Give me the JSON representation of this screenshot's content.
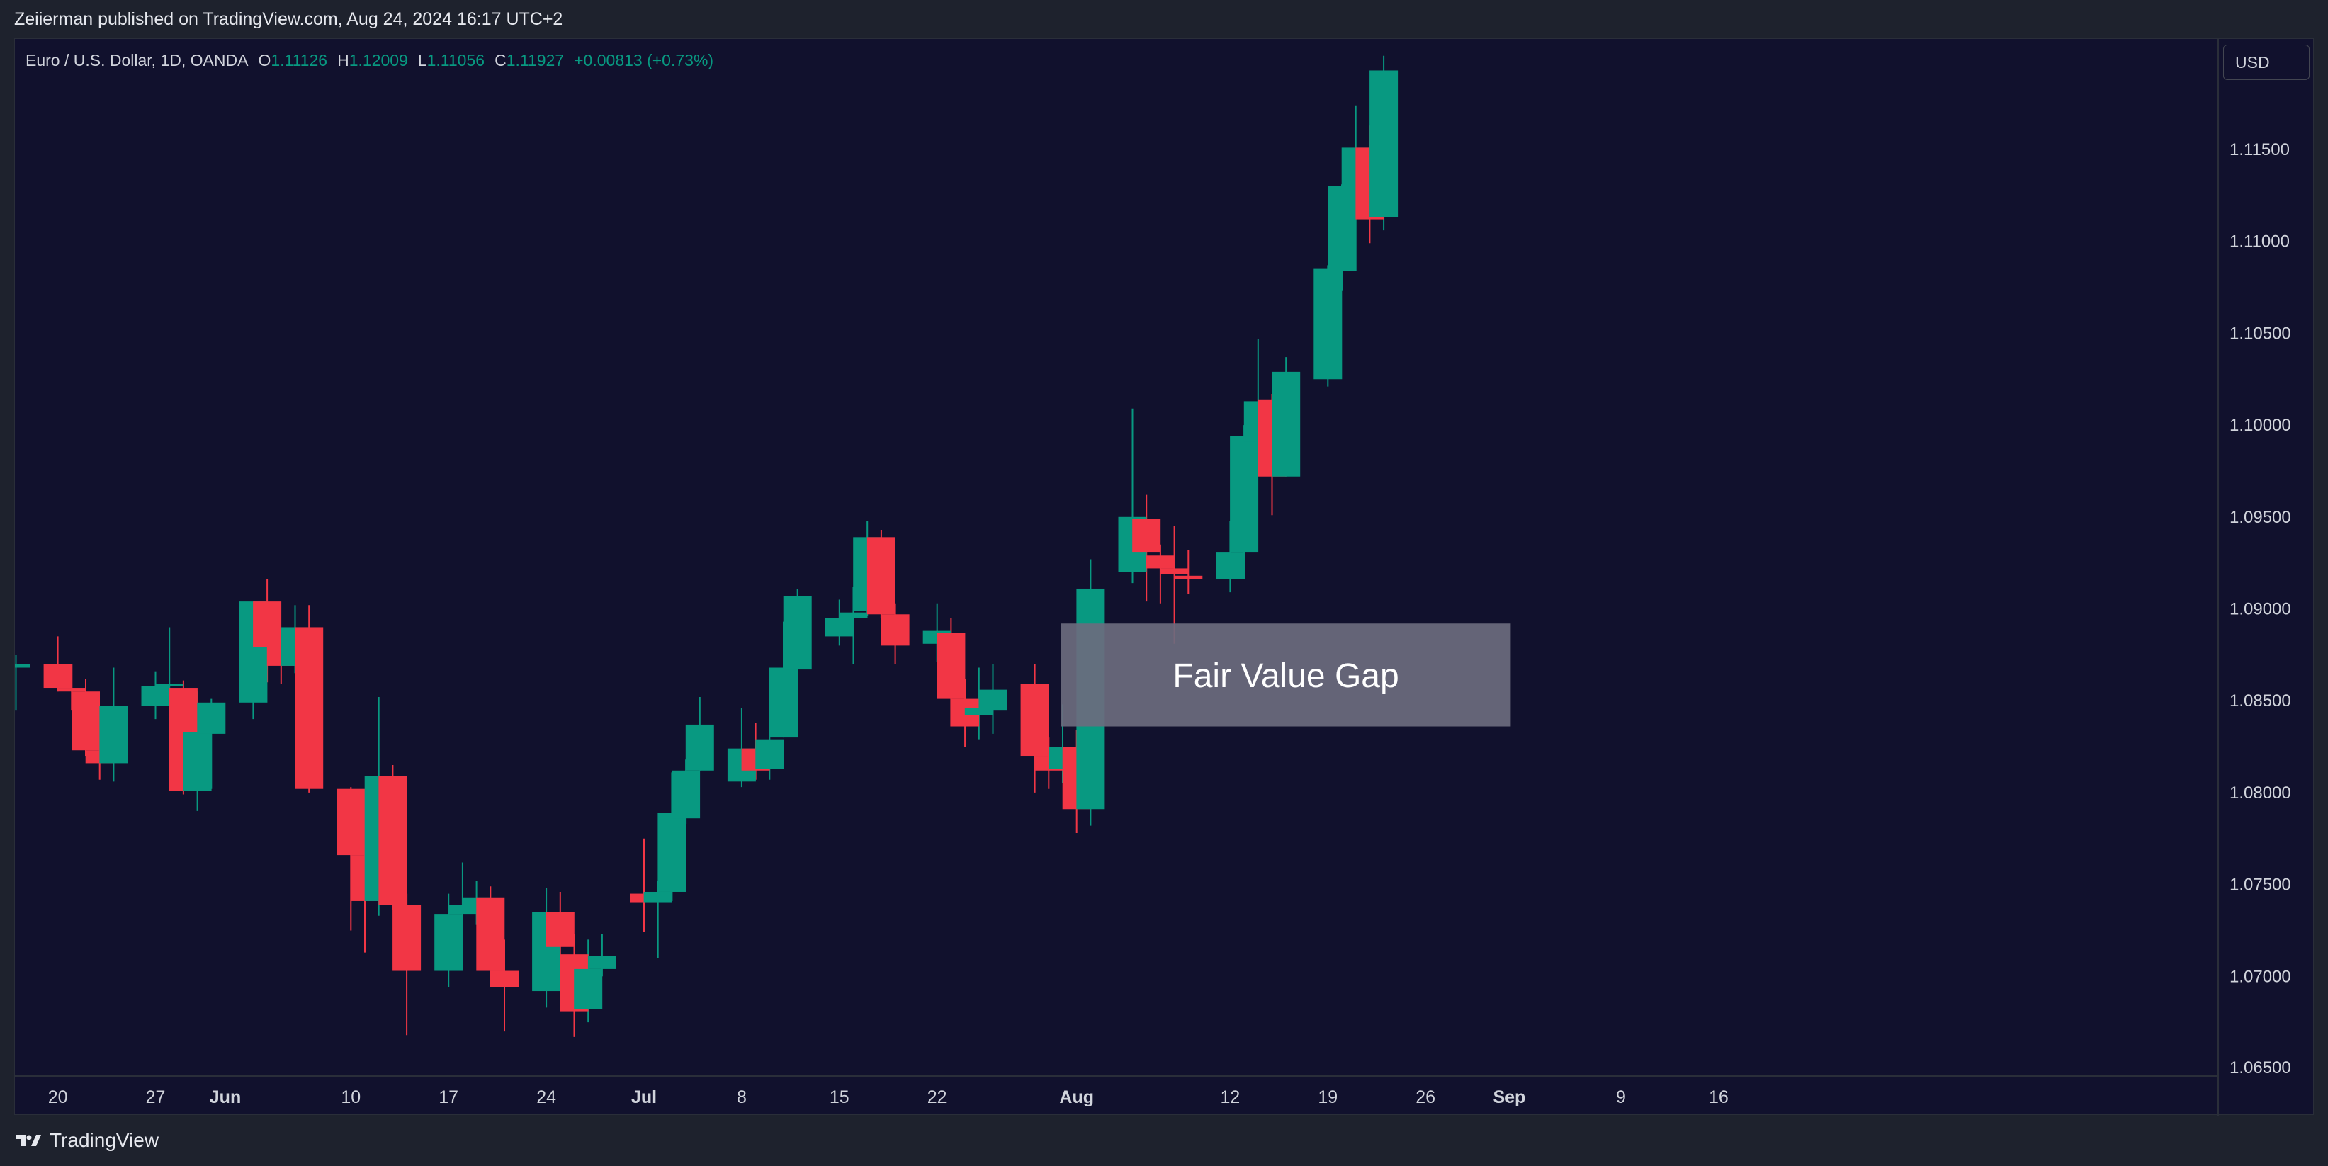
{
  "header": {
    "published_text": "Zeiierman published on TradingView.com, Aug 24, 2024 16:17 UTC+2"
  },
  "legend": {
    "symbol": "Euro / U.S. Dollar, 1D, OANDA",
    "o_label": "O",
    "o_value": "1.11126",
    "h_label": "H",
    "h_value": "1.12009",
    "l_label": "L",
    "l_value": "1.11056",
    "c_label": "C",
    "c_value": "1.11927",
    "change": "+0.00813 (+0.73%)"
  },
  "currency": "USD",
  "footer": {
    "brand": "TradingView"
  },
  "colors": {
    "up": "#089981",
    "down": "#f23645",
    "background": "#11112d",
    "fvg_box": "#6b6b7e"
  },
  "chart_data": {
    "type": "candlestick",
    "symbol": "EURUSD",
    "timeframe": "1D",
    "ylim": [
      1.0645,
      1.1205
    ],
    "y_ticks": [
      "1.11500",
      "1.11000",
      "1.10500",
      "1.10000",
      "1.09500",
      "1.09000",
      "1.08500",
      "1.08000",
      "1.07500",
      "1.07000",
      "1.06500"
    ],
    "x_ticks": [
      {
        "label": "20",
        "bold": false,
        "day": 0
      },
      {
        "label": "27",
        "bold": false,
        "day": 7
      },
      {
        "label": "Jun",
        "bold": true,
        "day": 12
      },
      {
        "label": "10",
        "bold": false,
        "day": 21
      },
      {
        "label": "17",
        "bold": false,
        "day": 28
      },
      {
        "label": "24",
        "bold": false,
        "day": 35
      },
      {
        "label": "Jul",
        "bold": true,
        "day": 42
      },
      {
        "label": "8",
        "bold": false,
        "day": 49
      },
      {
        "label": "15",
        "bold": false,
        "day": 56
      },
      {
        "label": "22",
        "bold": false,
        "day": 63
      },
      {
        "label": "Aug",
        "bold": true,
        "day": 73
      },
      {
        "label": "12",
        "bold": false,
        "day": 84
      },
      {
        "label": "19",
        "bold": false,
        "day": 91
      },
      {
        "label": "26",
        "bold": false,
        "day": 98
      },
      {
        "label": "Sep",
        "bold": true,
        "day": 104
      },
      {
        "label": "9",
        "bold": false,
        "day": 112
      },
      {
        "label": "16",
        "bold": false,
        "day": 119
      }
    ],
    "candles": [
      {
        "d": "May 17",
        "o": 1.0868,
        "h": 1.0875,
        "l": 1.0845,
        "c": 1.087
      },
      {
        "d": "May 20",
        "o": 1.087,
        "h": 1.0885,
        "l": 1.0855,
        "c": 1.0857
      },
      {
        "d": "May 21",
        "o": 1.0857,
        "h": 1.087,
        "l": 1.0845,
        "c": 1.0855
      },
      {
        "d": "May 22",
        "o": 1.0855,
        "h": 1.0862,
        "l": 1.082,
        "c": 1.0823
      },
      {
        "d": "May 23",
        "o": 1.0823,
        "h": 1.0843,
        "l": 1.0807,
        "c": 1.0816
      },
      {
        "d": "May 24",
        "o": 1.0816,
        "h": 1.0868,
        "l": 1.0806,
        "c": 1.0847
      },
      {
        "d": "May 27",
        "o": 1.0847,
        "h": 1.0866,
        "l": 1.084,
        "c": 1.0858
      },
      {
        "d": "May 28",
        "o": 1.0858,
        "h": 1.089,
        "l": 1.0855,
        "c": 1.0859
      },
      {
        "d": "May 29",
        "o": 1.0857,
        "h": 1.0861,
        "l": 1.0799,
        "c": 1.0801
      },
      {
        "d": "May 30",
        "o": 1.0801,
        "h": 1.0855,
        "l": 1.079,
        "c": 1.0833
      },
      {
        "d": "May 31",
        "o": 1.0832,
        "h": 1.0851,
        "l": 1.0802,
        "c": 1.0849
      },
      {
        "d": "Jun 3",
        "o": 1.0849,
        "h": 1.0902,
        "l": 1.084,
        "c": 1.0904
      },
      {
        "d": "Jun 4",
        "o": 1.0904,
        "h": 1.0916,
        "l": 1.086,
        "c": 1.0879
      },
      {
        "d": "Jun 5",
        "o": 1.0879,
        "h": 1.0889,
        "l": 1.0859,
        "c": 1.0869
      },
      {
        "d": "Jun 6",
        "o": 1.0869,
        "h": 1.0902,
        "l": 1.0865,
        "c": 1.089
      },
      {
        "d": "Jun 7",
        "o": 1.089,
        "h": 1.0902,
        "l": 1.08,
        "c": 1.0802
      },
      {
        "d": "Jun 10",
        "o": 1.0802,
        "h": 1.0803,
        "l": 1.0725,
        "c": 1.0766
      },
      {
        "d": "Jun 11",
        "o": 1.0766,
        "h": 1.0782,
        "l": 1.0713,
        "c": 1.0741
      },
      {
        "d": "Jun 12",
        "o": 1.0741,
        "h": 1.0852,
        "l": 1.0733,
        "c": 1.0809
      },
      {
        "d": "Jun 13",
        "o": 1.0809,
        "h": 1.0815,
        "l": 1.0736,
        "c": 1.0739
      },
      {
        "d": "Jun 14",
        "o": 1.0739,
        "h": 1.0745,
        "l": 1.0668,
        "c": 1.0703
      },
      {
        "d": "Jun 17",
        "o": 1.0703,
        "h": 1.0745,
        "l": 1.0694,
        "c": 1.0734
      },
      {
        "d": "Jun 18",
        "o": 1.0734,
        "h": 1.0762,
        "l": 1.0708,
        "c": 1.0739
      },
      {
        "d": "Jun 19",
        "o": 1.0739,
        "h": 1.0752,
        "l": 1.0728,
        "c": 1.0743
      },
      {
        "d": "Jun 20",
        "o": 1.0743,
        "h": 1.0749,
        "l": 1.0703,
        "c": 1.0703
      },
      {
        "d": "Jun 21",
        "o": 1.0703,
        "h": 1.072,
        "l": 1.067,
        "c": 1.0694
      },
      {
        "d": "Jun 24",
        "o": 1.0692,
        "h": 1.0748,
        "l": 1.0683,
        "c": 1.0735
      },
      {
        "d": "Jun 25",
        "o": 1.0735,
        "h": 1.0746,
        "l": 1.0701,
        "c": 1.0716
      },
      {
        "d": "Jun 26",
        "o": 1.0712,
        "h": 1.0723,
        "l": 1.0667,
        "c": 1.0681
      },
      {
        "d": "Jun 27",
        "o": 1.0682,
        "h": 1.072,
        "l": 1.0675,
        "c": 1.0704
      },
      {
        "d": "Jun 28",
        "o": 1.0704,
        "h": 1.0723,
        "l": 1.07,
        "c": 1.0711
      },
      {
        "d": "Jul 1",
        "o": 1.0745,
        "h": 1.0775,
        "l": 1.0724,
        "c": 1.074
      },
      {
        "d": "Jul 2",
        "o": 1.074,
        "h": 1.0752,
        "l": 1.071,
        "c": 1.0746
      },
      {
        "d": "Jul 3",
        "o": 1.0746,
        "h": 1.0811,
        "l": 1.0741,
        "c": 1.0789
      },
      {
        "d": "Jul 4",
        "o": 1.0786,
        "h": 1.0818,
        "l": 1.0783,
        "c": 1.0812
      },
      {
        "d": "Jul 5",
        "o": 1.0812,
        "h": 1.0852,
        "l": 1.0812,
        "c": 1.0837
      },
      {
        "d": "Jul 8",
        "o": 1.0806,
        "h": 1.0846,
        "l": 1.0803,
        "c": 1.0824
      },
      {
        "d": "Jul 9",
        "o": 1.0824,
        "h": 1.0838,
        "l": 1.0807,
        "c": 1.0812
      },
      {
        "d": "Jul 10",
        "o": 1.0813,
        "h": 1.0834,
        "l": 1.0807,
        "c": 1.0829
      },
      {
        "d": "Jul 11",
        "o": 1.083,
        "h": 1.0893,
        "l": 1.083,
        "c": 1.0868
      },
      {
        "d": "Jul 12",
        "o": 1.0867,
        "h": 1.0911,
        "l": 1.086,
        "c": 1.0907
      },
      {
        "d": "Jul 15",
        "o": 1.0885,
        "h": 1.0905,
        "l": 1.088,
        "c": 1.0895
      },
      {
        "d": "Jul 16",
        "o": 1.0895,
        "h": 1.0912,
        "l": 1.087,
        "c": 1.0898
      },
      {
        "d": "Jul 17",
        "o": 1.0899,
        "h": 1.0948,
        "l": 1.0896,
        "c": 1.0939
      },
      {
        "d": "Jul 18",
        "o": 1.0939,
        "h": 1.0943,
        "l": 1.0895,
        "c": 1.0897
      },
      {
        "d": "Jul 19",
        "o": 1.0897,
        "h": 1.0903,
        "l": 1.087,
        "c": 1.088
      },
      {
        "d": "Jul 22",
        "o": 1.0881,
        "h": 1.0903,
        "l": 1.0871,
        "c": 1.0888
      },
      {
        "d": "Jul 23",
        "o": 1.0887,
        "h": 1.0895,
        "l": 1.0836,
        "c": 1.0851
      },
      {
        "d": "Jul 24",
        "o": 1.0851,
        "h": 1.0862,
        "l": 1.0825,
        "c": 1.0836
      },
      {
        "d": "Jul 25",
        "o": 1.0842,
        "h": 1.0868,
        "l": 1.0829,
        "c": 1.0846
      },
      {
        "d": "Jul 26",
        "o": 1.0845,
        "h": 1.087,
        "l": 1.0832,
        "c": 1.0856
      },
      {
        "d": "Jul 29",
        "o": 1.0859,
        "h": 1.087,
        "l": 1.08,
        "c": 1.082
      },
      {
        "d": "Jul 30",
        "o": 1.082,
        "h": 1.083,
        "l": 1.0802,
        "c": 1.0812
      },
      {
        "d": "Jul 31",
        "o": 1.0813,
        "h": 1.0848,
        "l": 1.0805,
        "c": 1.0825
      },
      {
        "d": "Aug 1",
        "o": 1.0825,
        "h": 1.0834,
        "l": 1.0778,
        "c": 1.0791
      },
      {
        "d": "Aug 2",
        "o": 1.0791,
        "h": 1.0927,
        "l": 1.0782,
        "c": 1.0911
      },
      {
        "d": "Aug 5",
        "o": 1.092,
        "h": 1.1009,
        "l": 1.0914,
        "c": 1.095
      },
      {
        "d": "Aug 6",
        "o": 1.0949,
        "h": 1.0962,
        "l": 1.0904,
        "c": 1.0931
      },
      {
        "d": "Aug 7",
        "o": 1.0929,
        "h": 1.0935,
        "l": 1.0903,
        "c": 1.0922
      },
      {
        "d": "Aug 8",
        "o": 1.0922,
        "h": 1.0945,
        "l": 1.0881,
        "c": 1.0919
      },
      {
        "d": "Aug 9",
        "o": 1.0918,
        "h": 1.0932,
        "l": 1.0908,
        "c": 1.0916
      },
      {
        "d": "Aug 12",
        "o": 1.0916,
        "h": 1.0948,
        "l": 1.0909,
        "c": 1.0931
      },
      {
        "d": "Aug 13",
        "o": 1.0931,
        "h": 1.1,
        "l": 1.0916,
        "c": 1.0994
      },
      {
        "d": "Aug 14",
        "o": 1.0991,
        "h": 1.1047,
        "l": 1.0984,
        "c": 1.1013
      },
      {
        "d": "Aug 15",
        "o": 1.1014,
        "h": 1.1017,
        "l": 1.0951,
        "c": 1.0972
      },
      {
        "d": "Aug 16",
        "o": 1.0972,
        "h": 1.1037,
        "l": 1.0972,
        "c": 1.1029
      },
      {
        "d": "Aug 19",
        "o": 1.1025,
        "h": 1.1087,
        "l": 1.1021,
        "c": 1.1085
      },
      {
        "d": "Aug 20",
        "o": 1.1084,
        "h": 1.1131,
        "l": 1.1073,
        "c": 1.113
      },
      {
        "d": "Aug 21",
        "o": 1.1128,
        "h": 1.1174,
        "l": 1.1084,
        "c": 1.1151
      },
      {
        "d": "Aug 22",
        "o": 1.1151,
        "h": 1.1163,
        "l": 1.1099,
        "c": 1.1112
      },
      {
        "d": "Aug 23",
        "o": 1.1113,
        "h": 1.1201,
        "l": 1.1106,
        "c": 1.1193
      }
    ],
    "annotations": [
      {
        "type": "rectangle",
        "text": "Fair Value Gap",
        "from": "Aug 1",
        "to": "Sep 1",
        "price_top": 1.0892,
        "price_bottom": 1.0836
      }
    ]
  }
}
